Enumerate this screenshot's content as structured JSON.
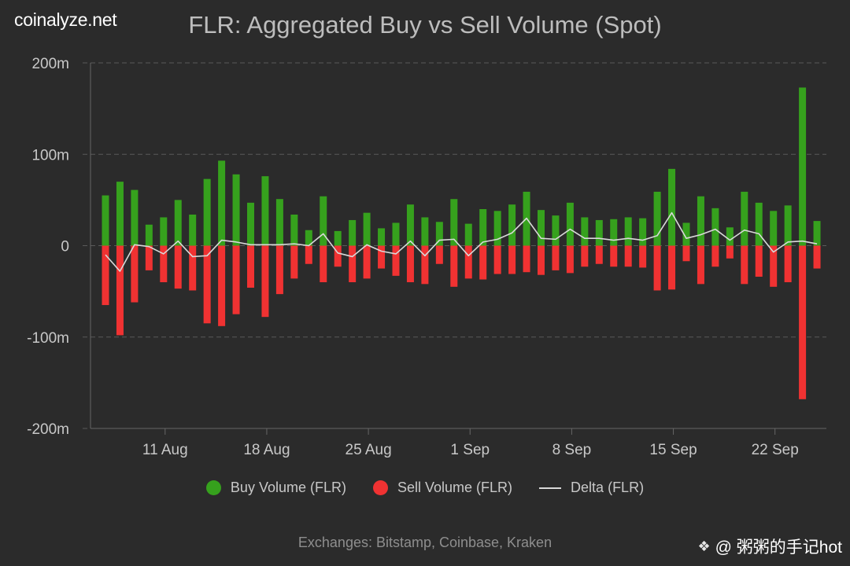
{
  "brand": "coinalyze.net",
  "footer": "Exchanges: Bitstamp, Coinbase, Kraken",
  "watermark": {
    "handle": "@ 粥粥的手记hot",
    "icon": "diamond-logo-icon"
  },
  "colors": {
    "background": "#2b2b2b",
    "buy": "#36a11d",
    "sell": "#f03232",
    "delta": "#d9d9d9",
    "grid": "#5a5a5a",
    "axis_text": "#c8c8c8"
  },
  "chart_data": {
    "type": "bar",
    "title": "FLR: Aggregated Buy vs Sell Volume (Spot)",
    "xlabel": "",
    "ylabel": "",
    "ylim": [
      -200,
      200
    ],
    "y_unit": "m",
    "y_ticks": [
      200,
      100,
      0,
      -100,
      -200
    ],
    "y_tick_labels": [
      "200m",
      "100m",
      "0",
      "-100m",
      "-200m"
    ],
    "x_tick_labels": [
      {
        "label": "11 Aug",
        "day_index": 4
      },
      {
        "label": "18 Aug",
        "day_index": 11
      },
      {
        "label": "25 Aug",
        "day_index": 18
      },
      {
        "label": "1 Sep",
        "day_index": 25
      },
      {
        "label": "8 Sep",
        "day_index": 32
      },
      {
        "label": "15 Sep",
        "day_index": 39
      },
      {
        "label": "22 Sep",
        "day_index": 46
      }
    ],
    "start_date": "7 Aug",
    "legend_position": "bottom",
    "grid": true,
    "series": [
      {
        "name": "Buy Volume (FLR)",
        "kind": "bar",
        "color": "#36a11d",
        "values": [
          55,
          70,
          61,
          23,
          31,
          50,
          34,
          73,
          93,
          78,
          47,
          76,
          51,
          34,
          17,
          54,
          16,
          28,
          36,
          19,
          25,
          45,
          31,
          26,
          51,
          24,
          40,
          38,
          45,
          59,
          39,
          33,
          47,
          31,
          28,
          29,
          31,
          30,
          59,
          84,
          25,
          54,
          41,
          20,
          59,
          47,
          38,
          44,
          173,
          27
        ]
      },
      {
        "name": "Sell Volume (FLR)",
        "kind": "bar",
        "color": "#f03232",
        "values": [
          -65,
          -98,
          -62,
          -27,
          -40,
          -47,
          -49,
          -85,
          -88,
          -75,
          -46,
          -78,
          -53,
          -36,
          -20,
          -40,
          -23,
          -40,
          -36,
          -25,
          -33,
          -40,
          -42,
          -20,
          -45,
          -36,
          -37,
          -31,
          -31,
          -29,
          -32,
          -27,
          -30,
          -23,
          -20,
          -23,
          -23,
          -24,
          -49,
          -48,
          -17,
          -42,
          -23,
          -14,
          -42,
          -34,
          -45,
          -40,
          -168,
          -25
        ]
      },
      {
        "name": "Delta (FLR)",
        "kind": "line",
        "color": "#d9d9d9",
        "values": [
          -10,
          -28,
          1,
          -1,
          -9,
          5,
          -12,
          -11,
          6,
          4,
          1,
          1,
          1,
          2,
          0,
          13,
          -8,
          -12,
          1,
          -6,
          -9,
          5,
          -11,
          6,
          7,
          -11,
          4,
          7,
          14,
          30,
          8,
          7,
          18,
          8,
          8,
          6,
          8,
          6,
          11,
          36,
          8,
          12,
          18,
          6,
          17,
          13,
          -7,
          4,
          5,
          2
        ]
      }
    ]
  }
}
